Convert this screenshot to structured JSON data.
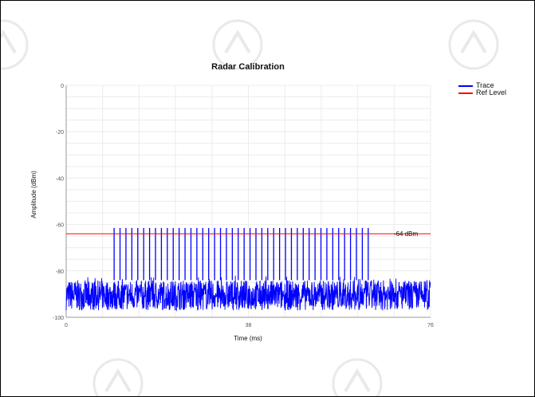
{
  "chart_data": {
    "type": "line",
    "title": "Radar Calibration",
    "xlabel": "Time (ms)",
    "ylabel": "Amplitude (dBm)",
    "xlim": [
      0,
      76
    ],
    "ylim": [
      -100,
      0
    ],
    "x_ticks": [
      "0",
      "38",
      "76"
    ],
    "y_ticks": [
      "0",
      "-20",
      "-40",
      "-60",
      "-80",
      "-100"
    ],
    "grid": true,
    "legend_position": "top-right",
    "noise_floor_dbm": [
      -97,
      -84
    ],
    "pulse_train": {
      "start_ms": 10,
      "end_ms": 63,
      "count": 44,
      "peak_dbm": -61.5
    },
    "series": [
      {
        "name": "Trace",
        "color": "#0000ff"
      },
      {
        "name": "Ref Level",
        "color": "#ff0000",
        "value": -64
      }
    ],
    "annotations": [
      {
        "text": "-64 dBm",
        "x": 69,
        "y": -64
      }
    ]
  }
}
